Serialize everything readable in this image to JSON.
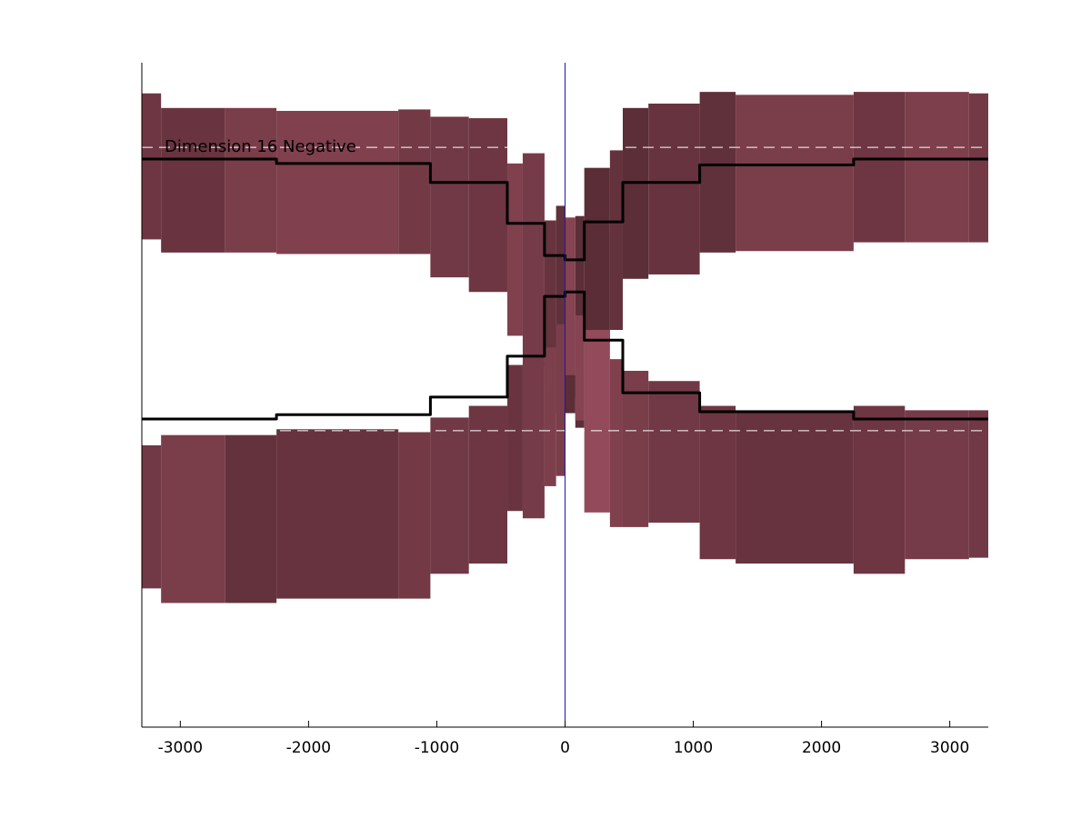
{
  "chart_data": {
    "type": "area",
    "annotation": "Dimension 16 Negative",
    "xlim": [
      -3300,
      3300
    ],
    "ylim": [
      -3.0,
      1.55
    ],
    "xticks": [
      -3000,
      -2000,
      -1000,
      0,
      1000,
      2000,
      3000
    ],
    "xtick_labels": [
      "-3000",
      "-2000",
      "-1000",
      "0",
      "1000",
      "2000",
      "3000"
    ],
    "yaxis_ticks_shown": false,
    "grid": false,
    "reference_lines": {
      "vertical_x": 0,
      "vertical_color": "#1a1aa0",
      "dashed_y": [
        0.97,
        -0.97
      ],
      "dashed_color": "#ffffff"
    },
    "colors": {
      "line": "#000000",
      "band_base": "#80404e"
    },
    "bands": [
      {
        "x0": -3300,
        "x1": -3150,
        "lo": 0.34,
        "hi": 1.34,
        "shade": 0.85
      },
      {
        "x0": -3150,
        "x1": -2650,
        "lo": 0.25,
        "hi": 1.24,
        "shade": 0.82
      },
      {
        "x0": -2650,
        "x1": -2250,
        "lo": 0.25,
        "hi": 1.24,
        "shade": 0.95
      },
      {
        "x0": -2250,
        "x1": -1300,
        "lo": 0.24,
        "hi": 1.22,
        "shade": 1.0
      },
      {
        "x0": -1300,
        "x1": -1050,
        "lo": 0.24,
        "hi": 1.23,
        "shade": 0.9
      },
      {
        "x0": -1050,
        "x1": -750,
        "lo": 0.08,
        "hi": 1.18,
        "shade": 0.88
      },
      {
        "x0": -750,
        "x1": -450,
        "lo": -0.02,
        "hi": 1.17,
        "shade": 0.85
      },
      {
        "x0": -450,
        "x1": -330,
        "lo": -0.32,
        "hi": 0.86,
        "shade": 1.0
      },
      {
        "x0": -330,
        "x1": -160,
        "lo": -0.53,
        "hi": 0.93,
        "shade": 0.92
      },
      {
        "x0": -160,
        "x1": -70,
        "lo": -0.68,
        "hi": 0.47,
        "shade": 0.8
      },
      {
        "x0": -70,
        "x1": 0,
        "lo": -0.85,
        "hi": 0.57,
        "shade": 0.75
      },
      {
        "x0": 0,
        "x1": 80,
        "lo": -0.75,
        "hi": 0.49,
        "shade": 1.05
      },
      {
        "x0": 80,
        "x1": 150,
        "lo": -0.95,
        "hi": 0.5,
        "shade": 0.72
      },
      {
        "x0": 150,
        "x1": 350,
        "lo": -0.37,
        "hi": 0.83,
        "shade": 0.7
      },
      {
        "x0": 350,
        "x1": 450,
        "lo": -0.28,
        "hi": 0.95,
        "shade": 0.78
      },
      {
        "x0": 450,
        "x1": 650,
        "lo": 0.07,
        "hi": 1.24,
        "shade": 0.72
      },
      {
        "x0": 650,
        "x1": 1050,
        "lo": 0.1,
        "hi": 1.27,
        "shade": 0.8
      },
      {
        "x0": 1050,
        "x1": 1330,
        "lo": 0.25,
        "hi": 1.35,
        "shade": 0.75
      },
      {
        "x0": 1330,
        "x1": 2250,
        "lo": 0.26,
        "hi": 1.33,
        "shade": 0.95
      },
      {
        "x0": 2250,
        "x1": 2650,
        "lo": 0.32,
        "hi": 1.35,
        "shade": 0.85
      },
      {
        "x0": 2650,
        "x1": 3150,
        "lo": 0.32,
        "hi": 1.35,
        "shade": 0.98
      },
      {
        "x0": 3150,
        "x1": 3300,
        "lo": 0.32,
        "hi": 1.34,
        "shade": 0.9
      },
      {
        "x0": -3300,
        "x1": -3150,
        "lo": -2.05,
        "hi": -1.07,
        "shade": 0.88
      },
      {
        "x0": -3150,
        "x1": -2650,
        "lo": -2.15,
        "hi": -1.0,
        "shade": 0.95
      },
      {
        "x0": -2650,
        "x1": -2250,
        "lo": -2.15,
        "hi": -1.0,
        "shade": 0.78
      },
      {
        "x0": -2250,
        "x1": -1300,
        "lo": -2.12,
        "hi": -0.96,
        "shade": 0.8
      },
      {
        "x0": -1300,
        "x1": -1050,
        "lo": -2.12,
        "hi": -0.98,
        "shade": 0.9
      },
      {
        "x0": -1050,
        "x1": -750,
        "lo": -1.95,
        "hi": -0.88,
        "shade": 0.88
      },
      {
        "x0": -750,
        "x1": -450,
        "lo": -1.88,
        "hi": -0.8,
        "shade": 0.85
      },
      {
        "x0": -450,
        "x1": -330,
        "lo": -1.52,
        "hi": -0.52,
        "shade": 0.82
      },
      {
        "x0": -330,
        "x1": -160,
        "lo": -1.57,
        "hi": -0.5,
        "shade": 0.92
      },
      {
        "x0": -160,
        "x1": -70,
        "lo": -1.35,
        "hi": -0.4,
        "shade": 0.98
      },
      {
        "x0": -70,
        "x1": 0,
        "lo": -1.28,
        "hi": -0.24,
        "shade": 0.95
      },
      {
        "x0": 0,
        "x1": 80,
        "lo": -0.85,
        "hi": -0.59,
        "shade": 0.7
      },
      {
        "x0": 80,
        "x1": 150,
        "lo": -0.9,
        "hi": -0.18,
        "shade": 1.05
      },
      {
        "x0": 150,
        "x1": 350,
        "lo": -1.53,
        "hi": -0.28,
        "shade": 1.15
      },
      {
        "x0": 350,
        "x1": 450,
        "lo": -1.63,
        "hi": -0.48,
        "shade": 1.0
      },
      {
        "x0": 450,
        "x1": 650,
        "lo": -1.63,
        "hi": -0.56,
        "shade": 0.95
      },
      {
        "x0": 650,
        "x1": 1050,
        "lo": -1.6,
        "hi": -0.63,
        "shade": 0.88
      },
      {
        "x0": 1050,
        "x1": 1330,
        "lo": -1.85,
        "hi": -0.8,
        "shade": 0.85
      },
      {
        "x0": 1330,
        "x1": 2250,
        "lo": -1.88,
        "hi": -0.83,
        "shade": 0.8
      },
      {
        "x0": 2250,
        "x1": 2650,
        "lo": -1.95,
        "hi": -0.8,
        "shade": 0.85
      },
      {
        "x0": 2650,
        "x1": 3150,
        "lo": -1.85,
        "hi": -0.83,
        "shade": 0.92
      },
      {
        "x0": 3150,
        "x1": 3300,
        "lo": -1.84,
        "hi": -0.83,
        "shade": 0.88
      }
    ],
    "series": [
      {
        "x": [
          -3300,
          -2250,
          -2250,
          -1050,
          -1050,
          -450,
          -450,
          -160,
          -160,
          0,
          0,
          150,
          150,
          450,
          450,
          1050,
          1050,
          2250,
          2250,
          3300
        ],
        "y": [
          0.89,
          0.89,
          0.86,
          0.86,
          0.73,
          0.73,
          0.45,
          0.45,
          0.23,
          0.23,
          0.2,
          0.2,
          0.46,
          0.46,
          0.73,
          0.73,
          0.85,
          0.85,
          0.89,
          0.89
        ]
      },
      {
        "x": [
          -3300,
          -2250,
          -2250,
          -1050,
          -1050,
          -450,
          -450,
          -160,
          -160,
          0,
          0,
          150,
          150,
          450,
          450,
          1050,
          1050,
          2250,
          2250,
          3300
        ],
        "y": [
          -0.89,
          -0.89,
          -0.86,
          -0.86,
          -0.74,
          -0.74,
          -0.46,
          -0.46,
          -0.05,
          -0.05,
          -0.02,
          -0.02,
          -0.35,
          -0.35,
          -0.71,
          -0.71,
          -0.84,
          -0.84,
          -0.89,
          -0.89
        ]
      }
    ]
  }
}
